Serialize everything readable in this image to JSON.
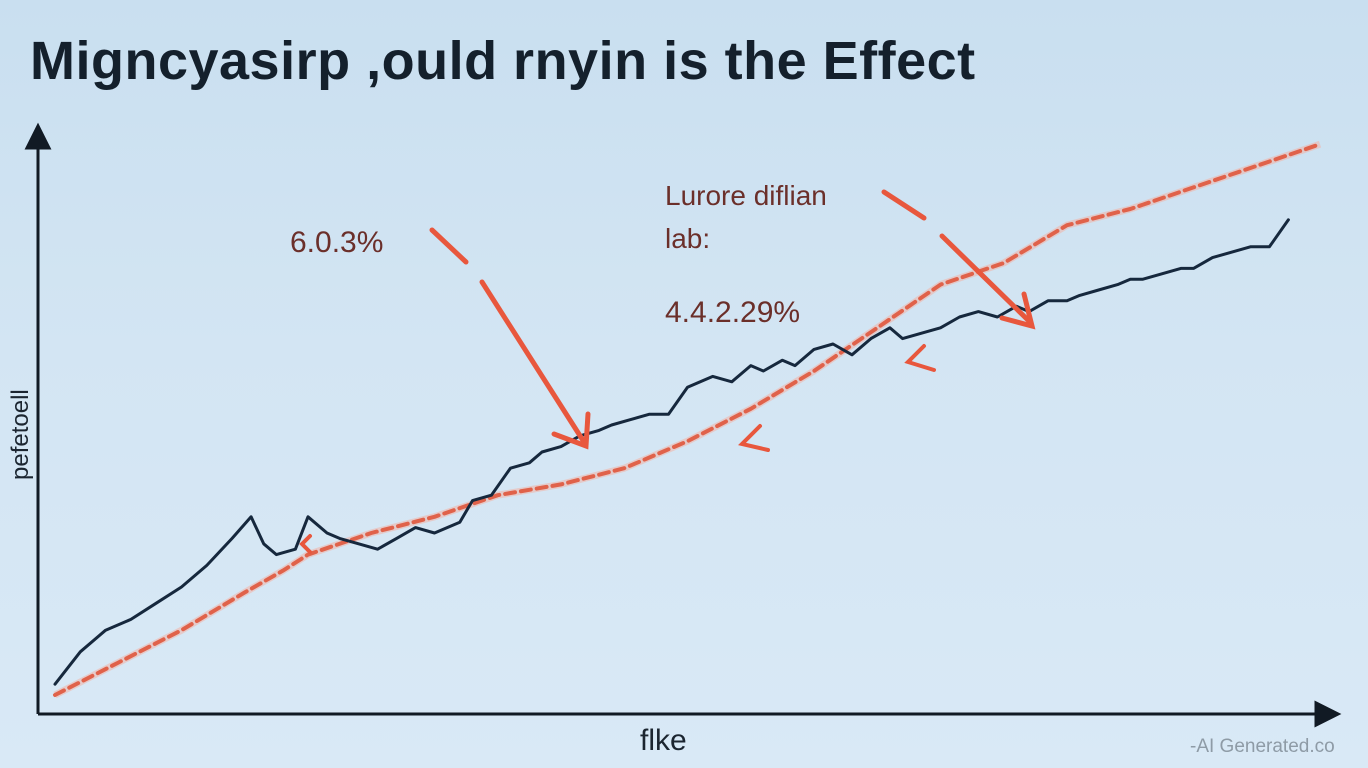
{
  "chart_data": {
    "type": "line",
    "title": "Migncyasirp ,ould rnyin is the Effect",
    "xlabel": "flke",
    "ylabel": "pefetoell",
    "xlim": [
      0,
      100
    ],
    "ylim": [
      0,
      100
    ],
    "grid": false,
    "legend": "none",
    "series": [
      {
        "style": "solid",
        "color": "#16283d",
        "x": [
          0,
          2,
          4,
          6,
          8,
          10,
          12,
          14,
          15.5,
          16.5,
          17.5,
          19,
          20,
          21.5,
          22.5,
          24,
          25.5,
          27,
          28.5,
          30,
          32,
          33,
          34.5,
          36,
          37.5,
          38.5,
          40,
          41.5,
          43,
          44,
          45.5,
          47,
          48.5,
          50,
          52,
          53.5,
          55,
          56,
          57.5,
          58.5,
          60,
          61.5,
          63,
          64.5,
          66,
          67,
          68.5,
          70,
          71.5,
          73,
          74.5,
          76,
          77,
          78.5,
          80,
          81,
          82.5,
          84,
          85,
          86,
          87.5,
          89,
          90,
          91.5,
          93,
          94.5,
          96,
          97.5
        ],
        "y": [
          2,
          8,
          12,
          14,
          17,
          20,
          24,
          29,
          33,
          28,
          26,
          27,
          33,
          30,
          29,
          28,
          27,
          29,
          31,
          30,
          32,
          36,
          37,
          42,
          43,
          45,
          46,
          48,
          49,
          50,
          51,
          52,
          52,
          57,
          59,
          58,
          61,
          60,
          62,
          61,
          64,
          65,
          63,
          66,
          68,
          66,
          67,
          68,
          70,
          71,
          70,
          72,
          71,
          73,
          73,
          74,
          75,
          76,
          77,
          77,
          78,
          79,
          79,
          81,
          82,
          83,
          83,
          88
        ]
      },
      {
        "style": "dashed",
        "color": "#e0624a",
        "x": [
          0,
          5,
          10,
          15,
          18,
          20,
          25,
          30,
          35,
          40,
          45,
          50,
          55,
          60,
          65,
          70,
          75,
          80,
          85,
          90,
          95,
          100
        ],
        "y": [
          0,
          6,
          12,
          19,
          23,
          26,
          30,
          33,
          37,
          39,
          42,
          47,
          53,
          60,
          68,
          76,
          80,
          87,
          90,
          94,
          98,
          102
        ]
      }
    ],
    "annotations": [
      {
        "text": "6.0.3%",
        "x": 20,
        "y": 84
      },
      {
        "text": "Lurore diflian",
        "x": 48,
        "y": 95
      },
      {
        "text": "lab:",
        "x": 48,
        "y": 86
      },
      {
        "text": "4.4.2.29%",
        "x": 48,
        "y": 74
      }
    ],
    "watermark": "-AI Generated.co"
  },
  "colors": {
    "background": "#d3e5f3",
    "axis": "#111a24",
    "annotation_text": "#6b2f2a",
    "arrow": "#e8573d"
  }
}
